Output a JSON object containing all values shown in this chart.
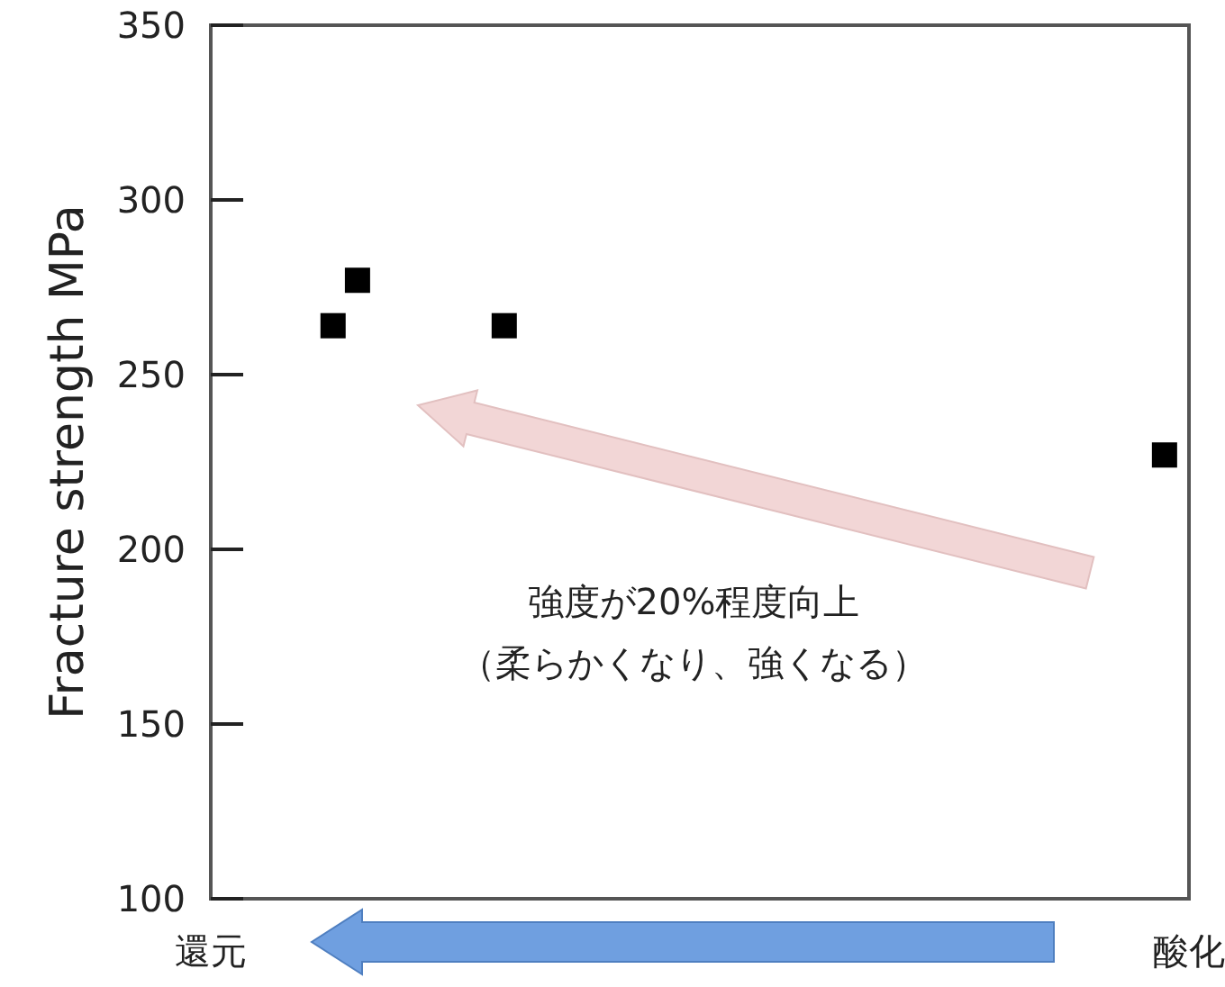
{
  "chart_data": {
    "type": "scatter",
    "ylabel": "Fracture strength  MPa",
    "categories": [
      "還元",
      null,
      null,
      null,
      null,
      null,
      null,
      null,
      null,
      null,
      null,
      null,
      null,
      null,
      null,
      null,
      null,
      null,
      null,
      null,
      null,
      null,
      null,
      null,
      null,
      null,
      null,
      null,
      null,
      null,
      null,
      null,
      null,
      null,
      null,
      null,
      null,
      null,
      null,
      null,
      "酸化"
    ],
    "series": [
      {
        "color": "#000000",
        "values": [
          null,
          null,
          null,
          null,
          null,
          264,
          277,
          null,
          null,
          null,
          null,
          null,
          264,
          null,
          null,
          null,
          null,
          null,
          null,
          null,
          null,
          null,
          null,
          null,
          null,
          null,
          null,
          null,
          null,
          null,
          null,
          null,
          null,
          null,
          null,
          null,
          null,
          null,
          null,
          227,
          null
        ]
      }
    ],
    "marker": "square",
    "ylim": [
      100,
      350
    ],
    "yticks": [
      100,
      150,
      200,
      250,
      300,
      350
    ],
    "annotations": [
      "強度が20%程度向上",
      "（柔らかくなり、強くなる）"
    ]
  }
}
